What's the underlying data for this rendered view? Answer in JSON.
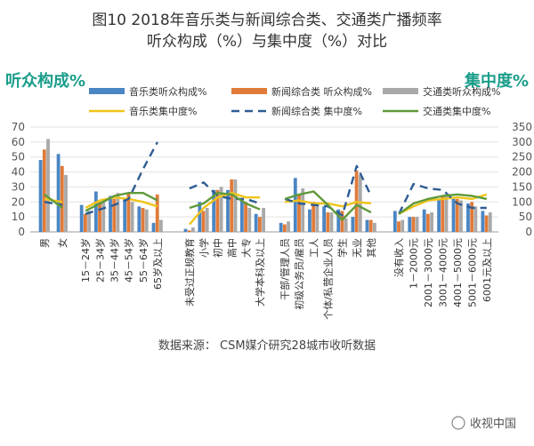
{
  "chart_data": {
    "type": "bar",
    "title_line1": "图10  2018年音乐类与新闻综合类、交通类广播频率",
    "title_line2": "听众构成（%）与集中度（%）对比",
    "left_axis_title": "听众构成%",
    "right_axis_title": "集中度%",
    "source": "数据来源：  CSM媒介研究28城市收听数据",
    "watermark": "收视中国",
    "ylim_left": [
      0,
      70
    ],
    "yticks_left": [
      "0",
      "10",
      "20",
      "30",
      "40",
      "50",
      "60",
      "70"
    ],
    "ylim_right": [
      0,
      350
    ],
    "yticks_right": [
      "0",
      "50",
      "100",
      "150",
      "200",
      "250",
      "300",
      "350"
    ],
    "groups": [
      [
        "男",
        "女"
      ],
      [
        "15－24岁",
        "25－34岁",
        "35－44岁",
        "45－54岁",
        "55－64岁",
        "65岁及以上"
      ],
      [
        "未受过正规教育",
        "小学",
        "初中",
        "高中",
        "大专",
        "大学本科及以上"
      ],
      [
        "干部/管理人员",
        "初级公务员/雇员",
        "工人",
        "个体/私营企业人员",
        "学生",
        "无业",
        "其他"
      ],
      [
        "没有收入",
        "1－2000元",
        "2001－3000元",
        "3001－4000元",
        "4001－5000元",
        "5001－6000元",
        "6001元及以上"
      ]
    ],
    "bar_series": [
      {
        "name": "音乐类听众构成%",
        "color": "#4a86c4",
        "values": [
          [
            48,
            52
          ],
          [
            18,
            27,
            24,
            22,
            17,
            6
          ],
          [
            2,
            20,
            28,
            28,
            22,
            12
          ],
          [
            6,
            36,
            15,
            17,
            15,
            10,
            8
          ],
          [
            14,
            10,
            15,
            22,
            22,
            19,
            14
          ]
        ]
      },
      {
        "name": "新闻综合类 听众构成%",
        "color": "#e07b39",
        "values": [
          [
            55,
            44
          ],
          [
            12,
            20,
            22,
            26,
            16,
            25
          ],
          [
            1,
            14,
            28,
            35,
            20,
            10
          ],
          [
            5,
            25,
            20,
            13,
            14,
            41,
            8
          ],
          [
            7,
            10,
            12,
            24,
            22,
            20,
            11
          ]
        ]
      },
      {
        "name": "交通类听众构成%",
        "color": "#a9a9a9",
        "values": [
          [
            62,
            38
          ],
          [
            14,
            22,
            26,
            20,
            15,
            8
          ],
          [
            3,
            16,
            30,
            35,
            16,
            16
          ],
          [
            7,
            29,
            17,
            13,
            9,
            38,
            6
          ],
          [
            8,
            10,
            13,
            25,
            21,
            17,
            13
          ]
        ]
      }
    ],
    "line_series": [
      {
        "name": "音乐类集中度%",
        "color": "#f0c419",
        "dash": false,
        "values": [
          [
            110,
            100
          ],
          [
            80,
            105,
            115,
            110,
            100,
            85
          ],
          [
            25,
            80,
            115,
            130,
            115,
            115
          ],
          [
            100,
            105,
            95,
            95,
            85,
            100,
            95
          ],
          [
            60,
            85,
            105,
            110,
            115,
            110,
            125
          ]
        ]
      },
      {
        "name": "新闻综合类 集中度%",
        "color": "#2e5c93",
        "dash": true,
        "values": [
          [
            100,
            90
          ],
          [
            60,
            75,
            90,
            110,
            210,
            300
          ],
          [
            145,
            165,
            120,
            110,
            110,
            95
          ],
          [
            110,
            95,
            90,
            85,
            55,
            220,
            120
          ],
          [
            60,
            160,
            145,
            140,
            95,
            80,
            80
          ]
        ]
      },
      {
        "name": "交通类集中度%",
        "color": "#5f9a3a",
        "dash": false,
        "values": [
          [
            125,
            80
          ],
          [
            70,
            95,
            120,
            130,
            130,
            105
          ],
          [
            80,
            95,
            130,
            125,
            95,
            75
          ],
          [
            110,
            125,
            135,
            90,
            40,
            90,
            65
          ],
          [
            60,
            95,
            110,
            120,
            125,
            120,
            110
          ]
        ]
      }
    ]
  }
}
